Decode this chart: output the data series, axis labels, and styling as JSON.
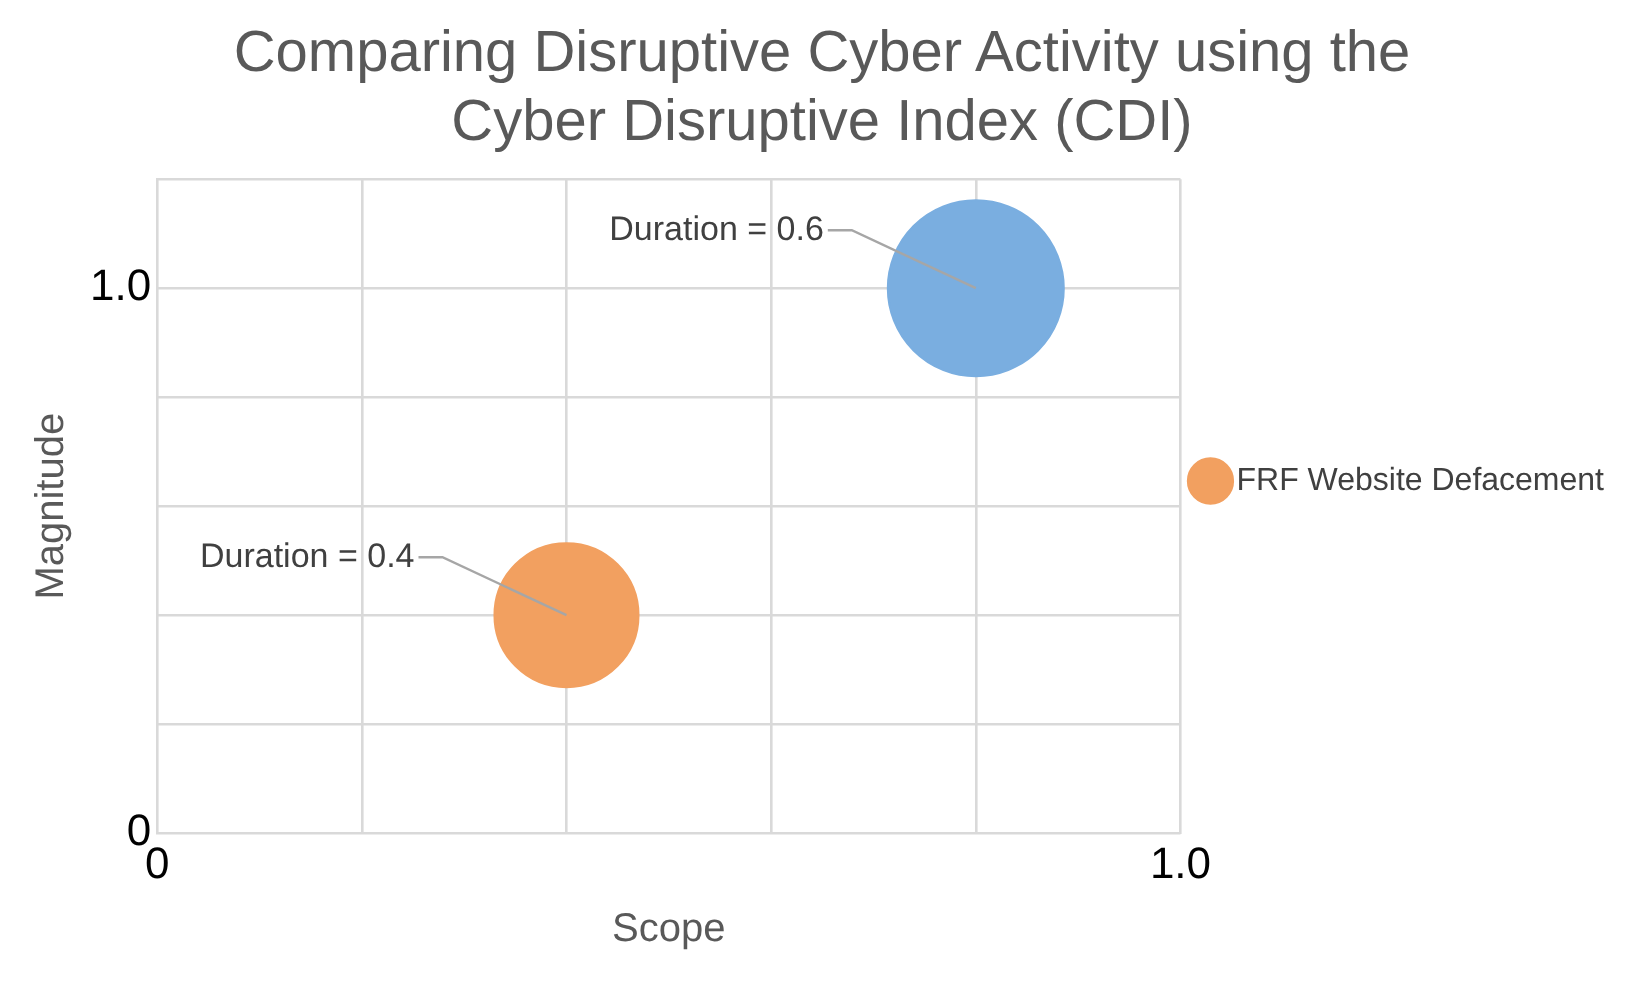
{
  "chart_data": {
    "type": "bubble",
    "title": "Comparing Disruptive Cyber Activity using the Cyber Disruptive Index (CDI)",
    "xlabel": "Scope",
    "ylabel": "Magnitude",
    "xlim": [
      0,
      1.0
    ],
    "xticks": [
      {
        "value": 0,
        "label": "0"
      },
      {
        "value": 0.2,
        "label": null
      },
      {
        "value": 0.4,
        "label": null
      },
      {
        "value": 0.6,
        "label": null
      },
      {
        "value": 0.8,
        "label": null
      },
      {
        "value": 1.0,
        "label": "1.0"
      }
    ],
    "ylim": [
      0,
      1.2
    ],
    "yticks": [
      {
        "value": 0,
        "label": "0"
      },
      {
        "value": 0.2,
        "label": null
      },
      {
        "value": 0.4,
        "label": null
      },
      {
        "value": 0.6,
        "label": null
      },
      {
        "value": 0.8,
        "label": null
      },
      {
        "value": 1.0,
        "label": "1.0"
      },
      {
        "value": 1.2,
        "label": null
      }
    ],
    "grid": true,
    "legend": "right",
    "series": [
      {
        "color": "#7aaee0",
        "x": [
          0.8
        ],
        "values": [
          1.0
        ],
        "sizes": [
          1
        ]
      },
      {
        "name": "FRF Website Defacement",
        "color": "#f2a060",
        "x": [
          0.4
        ],
        "values": [
          0.4
        ],
        "sizes": [
          0.67
        ]
      }
    ],
    "annotations": [
      {
        "text": "Duration = 0.6",
        "x": 0.8,
        "y": 1.0
      },
      {
        "text": "Duration = 0.4",
        "x": 0.4,
        "y": 0.4
      }
    ]
  }
}
